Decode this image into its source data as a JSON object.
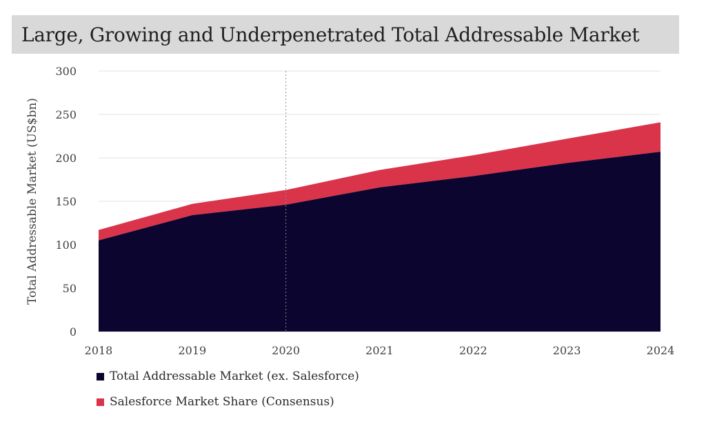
{
  "header": {
    "title": "Large, Growing and Underpenetrated Total Addressable Market"
  },
  "chart_data": {
    "type": "area",
    "stacked": true,
    "title": "Large, Growing and Underpenetrated Total Addressable Market",
    "xlabel": "",
    "ylabel": "Total Addressable Market (US$bn)",
    "x": [
      "2018",
      "2019",
      "2020",
      "2021",
      "2022",
      "2023",
      "2024"
    ],
    "ylim": [
      0,
      300
    ],
    "yticks": [
      "0",
      "50",
      "100",
      "150",
      "200",
      "250",
      "300"
    ],
    "grid": true,
    "reference_line_x": "2020",
    "legend_position": "bottom-left",
    "series": [
      {
        "name": "Total Addressable Market (ex. Salesforce)",
        "color": "#0b0530",
        "values": [
          105,
          134,
          146,
          166,
          179,
          194,
          207
        ]
      },
      {
        "name": "Salesforce Market Share (Consensus)",
        "color": "#d9344a",
        "values": [
          12,
          13,
          17,
          20,
          24,
          28,
          34
        ]
      }
    ]
  }
}
